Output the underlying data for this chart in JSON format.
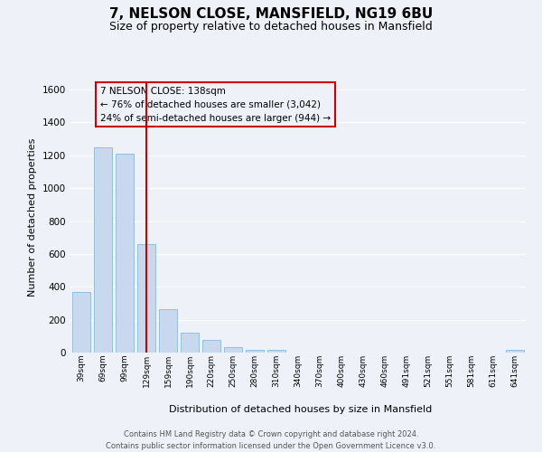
{
  "title1": "7, NELSON CLOSE, MANSFIELD, NG19 6BU",
  "title2": "Size of property relative to detached houses in Mansfield",
  "xlabel": "Distribution of detached houses by size in Mansfield",
  "ylabel": "Number of detached properties",
  "bar_labels": [
    "39sqm",
    "69sqm",
    "99sqm",
    "129sqm",
    "159sqm",
    "190sqm",
    "220sqm",
    "250sqm",
    "280sqm",
    "310sqm",
    "340sqm",
    "370sqm",
    "400sqm",
    "430sqm",
    "460sqm",
    "491sqm",
    "521sqm",
    "551sqm",
    "581sqm",
    "611sqm",
    "641sqm"
  ],
  "bar_values": [
    370,
    1250,
    1210,
    660,
    265,
    120,
    75,
    35,
    18,
    14,
    0,
    0,
    0,
    0,
    0,
    0,
    0,
    0,
    0,
    0,
    14
  ],
  "bar_color": "#c8d9ee",
  "bar_edgecolor": "#7aafd4",
  "ylim": [
    0,
    1650
  ],
  "yticks": [
    0,
    200,
    400,
    600,
    800,
    1000,
    1200,
    1400,
    1600
  ],
  "vline_color": "#cc0000",
  "annotation_title": "7 NELSON CLOSE: 138sqm",
  "annotation_line1": "← 76% of detached houses are smaller (3,042)",
  "annotation_line2": "24% of semi-detached houses are larger (944) →",
  "annotation_box_color": "#cc0000",
  "footer1": "Contains HM Land Registry data © Crown copyright and database right 2024.",
  "footer2": "Contains public sector information licensed under the Open Government Licence v3.0.",
  "bg_color": "#eef2f8",
  "grid_color": "#ffffff",
  "title1_fontsize": 11,
  "title2_fontsize": 9
}
